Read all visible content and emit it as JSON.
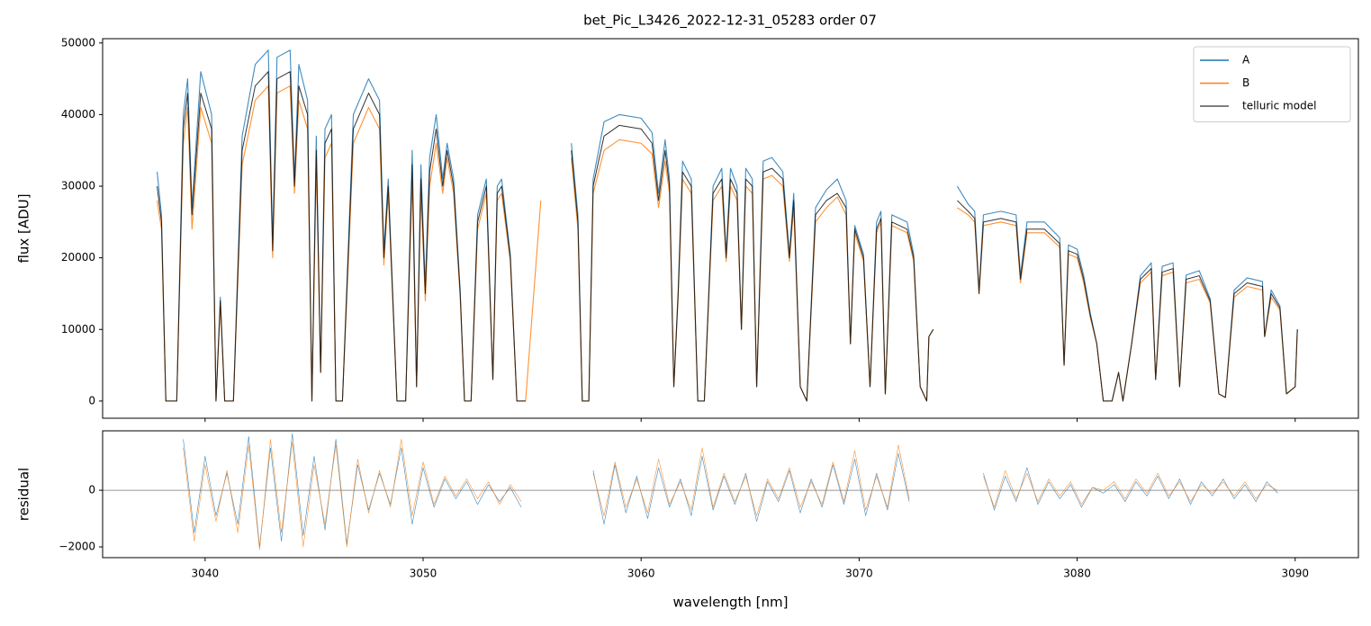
{
  "chart_data": [
    {
      "type": "line",
      "title": "bet_Pic_L3426_2022-12-31_05283  order 07",
      "ylabel": "flux [ADU]",
      "xlim": [
        3035.3,
        3092.9
      ],
      "ylim": [
        -2400,
        50600
      ],
      "yticks": [
        0,
        10000,
        20000,
        30000,
        40000,
        50000
      ],
      "legend": "upper right",
      "x": [
        3037.8,
        3038.0,
        3038.2,
        3038.7,
        3039.0,
        3039.2,
        3039.4,
        3039.8,
        3040.3,
        3040.5,
        3040.7,
        3040.9,
        3041.3,
        3041.7,
        3042.3,
        3042.9,
        3043.1,
        3043.3,
        3043.9,
        3044.1,
        3044.3,
        3044.7,
        3044.9,
        3045.1,
        3045.3,
        3045.5,
        3045.8,
        3046.0,
        3046.3,
        3046.8,
        3047.5,
        3048.0,
        3048.2,
        3048.4,
        3048.8,
        3049.2,
        3049.5,
        3049.7,
        3049.9,
        3050.1,
        3050.3,
        3050.6,
        3050.9,
        3051.1,
        3051.4,
        3051.7,
        3051.9,
        3052.2,
        3052.5,
        3052.9,
        3053.2,
        3053.4,
        3053.6,
        3054.0,
        3054.3,
        3054.7,
        3055.4,
        3056.0,
        3056.8,
        3057.1,
        3057.3,
        3057.6,
        3057.8,
        3058.3,
        3059.0,
        3060.0,
        3060.5,
        3060.8,
        3061.1,
        3061.3,
        3061.5,
        3061.7,
        3061.9,
        3062.3,
        3062.6,
        3062.9,
        3063.3,
        3063.7,
        3063.9,
        3064.1,
        3064.4,
        3064.6,
        3064.8,
        3065.1,
        3065.3,
        3065.6,
        3066.0,
        3066.5,
        3066.8,
        3067.0,
        3067.3,
        3067.6,
        3068.0,
        3068.5,
        3069.0,
        3069.4,
        3069.6,
        3069.8,
        3070.2,
        3070.5,
        3070.8,
        3071.0,
        3071.2,
        3071.5,
        3072.2,
        3072.5,
        3072.8,
        3073.1,
        3073.2,
        3073.4,
        3074.0,
        3074.5,
        3075.0,
        3075.3,
        3075.5,
        3075.7,
        3076.5,
        3077.2,
        3077.4,
        3077.7,
        3078.5,
        3079.2,
        3079.4,
        3079.6,
        3080.0,
        3080.3,
        3080.6,
        3080.9,
        3081.2,
        3081.6,
        3081.9,
        3082.1,
        3082.5,
        3082.9,
        3083.4,
        3083.6,
        3083.9,
        3084.4,
        3084.7,
        3085.0,
        3085.6,
        3086.1,
        3086.5,
        3086.8,
        3087.2,
        3087.8,
        3088.5,
        3088.6,
        3088.9,
        3089.3,
        3089.6,
        3090.0,
        3090.1
      ],
      "series": [
        {
          "name": "A",
          "color": "#1f77b4",
          "values": [
            32000,
            26000,
            0,
            0,
            40000,
            45000,
            27000,
            46000,
            40000,
            0,
            14500,
            0,
            0,
            37000,
            47000,
            49000,
            22000,
            48000,
            49000,
            31000,
            47000,
            42000,
            0,
            37000,
            4000,
            38000,
            40000,
            0,
            0,
            40000,
            45000,
            42000,
            21000,
            31000,
            0,
            0,
            35000,
            2000,
            33000,
            16000,
            34000,
            40000,
            31000,
            36000,
            31000,
            15500,
            0,
            0,
            26000,
            31000,
            3000,
            30000,
            31000,
            20500,
            0,
            0,
            null,
            null,
            36000,
            26000,
            0,
            0,
            31000,
            39000,
            40000,
            39500,
            37500,
            29000,
            36500,
            31000,
            2000,
            15500,
            33500,
            31000,
            0,
            0,
            30000,
            32500,
            20500,
            32500,
            30000,
            10000,
            32500,
            31000,
            2000,
            33500,
            34000,
            32000,
            20500,
            29000,
            2000,
            0,
            27000,
            29500,
            31000,
            28000,
            8000,
            24500,
            20500,
            2000,
            25000,
            26500,
            1000,
            26000,
            25000,
            20500,
            2000,
            0,
            9000,
            10000,
            null,
            30000,
            27500,
            26500,
            15500,
            26000,
            26500,
            26000,
            17500,
            25000,
            25000,
            22800,
            5000,
            21800,
            21200,
            17500,
            12300,
            8000,
            0,
            0,
            4000,
            0,
            8000,
            17500,
            19300,
            3000,
            18800,
            19300,
            2000,
            17600,
            18200,
            14300,
            1000,
            500,
            15500,
            17200,
            16700,
            9000,
            15500,
            13300,
            1000,
            2000,
            10000
          ]
        },
        {
          "name": "B",
          "color": "#ff7f0e",
          "values": [
            28000,
            24000,
            0,
            0,
            36000,
            41000,
            24000,
            41000,
            36000,
            0,
            13500,
            0,
            0,
            33000,
            42000,
            44000,
            20000,
            43000,
            44000,
            29000,
            42000,
            38000,
            0,
            33000,
            4000,
            34000,
            36000,
            0,
            0,
            36000,
            41000,
            38000,
            19000,
            29000,
            0,
            0,
            31000,
            2000,
            29000,
            14000,
            30000,
            36000,
            29000,
            34000,
            29000,
            14500,
            0,
            0,
            24000,
            29000,
            3000,
            28000,
            29000,
            19500,
            0,
            0,
            28000,
            null,
            34000,
            24000,
            0,
            0,
            29000,
            35000,
            36500,
            36000,
            34500,
            27000,
            33500,
            29000,
            2000,
            14500,
            31000,
            29000,
            0,
            0,
            28000,
            30000,
            19500,
            30000,
            28000,
            10000,
            30000,
            29000,
            2000,
            31000,
            31500,
            30000,
            19500,
            27000,
            2000,
            0,
            25000,
            27000,
            28500,
            26000,
            8000,
            23500,
            19500,
            2000,
            23500,
            25000,
            1000,
            24500,
            23500,
            19500,
            2000,
            0,
            9000,
            10000,
            null,
            27000,
            26000,
            25000,
            15000,
            24500,
            25000,
            24500,
            16500,
            23500,
            23500,
            21500,
            5000,
            20500,
            20000,
            16500,
            11700,
            8000,
            0,
            0,
            4000,
            0,
            8000,
            16500,
            18000,
            3000,
            17500,
            18000,
            2000,
            16500,
            17000,
            13700,
            1000,
            500,
            14500,
            16000,
            15500,
            9000,
            14500,
            12700,
            1000,
            2000,
            10000
          ]
        },
        {
          "name": "telluric model",
          "color": "#555555",
          "values": [
            30000,
            25000,
            0,
            0,
            38000,
            43000,
            26000,
            43000,
            38000,
            0,
            14000,
            0,
            0,
            35000,
            44000,
            46000,
            21000,
            45000,
            46000,
            30000,
            44000,
            40000,
            0,
            35000,
            4000,
            36000,
            38000,
            0,
            0,
            38000,
            43000,
            40000,
            20000,
            30000,
            0,
            0,
            33000,
            2000,
            31000,
            15000,
            32000,
            38000,
            30000,
            35000,
            30000,
            15000,
            0,
            0,
            25000,
            30000,
            3000,
            29000,
            30000,
            20000,
            0,
            0,
            null,
            null,
            35000,
            25000,
            0,
            0,
            30000,
            37000,
            38500,
            38000,
            36000,
            28000,
            35000,
            30000,
            2000,
            15000,
            32000,
            30000,
            0,
            0,
            29000,
            31000,
            20000,
            31000,
            29000,
            10000,
            31000,
            30000,
            2000,
            32000,
            32500,
            31000,
            20000,
            28000,
            2000,
            0,
            26000,
            28000,
            29000,
            27000,
            8000,
            24000,
            20000,
            2000,
            24000,
            25500,
            1000,
            25000,
            24000,
            20000,
            2000,
            0,
            9000,
            10000,
            null,
            28000,
            26500,
            25500,
            15000,
            25000,
            25500,
            25000,
            17000,
            24000,
            24000,
            22000,
            5000,
            21000,
            20500,
            17000,
            12000,
            8000,
            0,
            0,
            4000,
            0,
            8000,
            17000,
            18500,
            3000,
            18000,
            18500,
            2000,
            17000,
            17500,
            14000,
            1000,
            500,
            15000,
            16500,
            16000,
            9000,
            15000,
            13000,
            1000,
            2000,
            10000
          ]
        }
      ]
    },
    {
      "type": "line",
      "ylabel": "residual",
      "xlabel": "wavelength [nm]",
      "xlim": [
        3035.3,
        3092.9
      ],
      "xticks": [
        3040,
        3050,
        3060,
        3070,
        3080,
        3090
      ],
      "ylim": [
        -2380,
        2100
      ],
      "yticks": [
        {
          "value": -2000,
          "label": "−2000"
        },
        0
      ],
      "hline": 0,
      "x": [
        3039.0,
        3039.5,
        3040.0,
        3040.5,
        3041.0,
        3041.5,
        3042.0,
        3042.5,
        3043.0,
        3043.5,
        3044.0,
        3044.5,
        3045.0,
        3045.5,
        3046.0,
        3046.5,
        3047.0,
        3047.5,
        3048.0,
        3048.5,
        3049.0,
        3049.5,
        3050.0,
        3050.5,
        3051.0,
        3051.5,
        3052.0,
        3052.5,
        3053.0,
        3053.5,
        3054.0,
        3054.5,
        3056.0,
        3057.8,
        3058.3,
        3058.8,
        3059.3,
        3059.8,
        3060.3,
        3060.8,
        3061.3,
        3061.8,
        3062.3,
        3062.8,
        3063.3,
        3063.8,
        3064.3,
        3064.8,
        3065.3,
        3065.8,
        3066.3,
        3066.8,
        3067.3,
        3067.8,
        3068.3,
        3068.8,
        3069.3,
        3069.8,
        3070.3,
        3070.8,
        3071.3,
        3071.8,
        3072.3,
        3074.0,
        3075.7,
        3076.2,
        3076.7,
        3077.2,
        3077.7,
        3078.2,
        3078.7,
        3079.2,
        3079.7,
        3080.2,
        3080.7,
        3081.2,
        3081.7,
        3082.2,
        3082.7,
        3083.2,
        3083.7,
        3084.2,
        3084.7,
        3085.2,
        3085.7,
        3086.2,
        3086.7,
        3087.2,
        3087.7,
        3088.2,
        3088.7,
        3089.2
      ],
      "series": [
        {
          "name": "A",
          "color": "#1f77b4",
          "values": [
            1800,
            -1500,
            1200,
            -900,
            600,
            -1200,
            1900,
            -2000,
            1500,
            -1800,
            2000,
            -1600,
            1200,
            -1400,
            1800,
            -1900,
            900,
            -700,
            600,
            -500,
            1500,
            -1200,
            800,
            -600,
            400,
            -300,
            300,
            -500,
            200,
            -400,
            100,
            -600,
            null,
            700,
            -1200,
            900,
            -800,
            500,
            -1000,
            800,
            -600,
            400,
            -900,
            1200,
            -700,
            500,
            -500,
            600,
            -1100,
            300,
            -400,
            700,
            -800,
            400,
            -600,
            900,
            -500,
            1100,
            -900,
            600,
            -700,
            1300,
            -400,
            null,
            600,
            -700,
            500,
            -400,
            800,
            -500,
            300,
            -300,
            200,
            -600,
            100,
            -100,
            200,
            -400,
            300,
            -200,
            500,
            -300,
            400,
            -500,
            300,
            -200,
            400,
            -300,
            200,
            -400,
            300,
            -100
          ]
        },
        {
          "name": "B",
          "color": "#ff7f0e",
          "values": [
            1500,
            -1800,
            900,
            -1100,
            700,
            -1500,
            1600,
            -2100,
            1800,
            -1500,
            1700,
            -2000,
            900,
            -1200,
            1600,
            -2000,
            1100,
            -800,
            700,
            -600,
            1800,
            -900,
            1000,
            -500,
            500,
            -200,
            400,
            -300,
            300,
            -500,
            200,
            -400,
            null,
            600,
            -900,
            1000,
            -600,
            400,
            -800,
            1100,
            -500,
            300,
            -700,
            1500,
            -600,
            600,
            -400,
            500,
            -900,
            400,
            -300,
            800,
            -600,
            300,
            -500,
            1000,
            -400,
            1400,
            -700,
            500,
            -600,
            1600,
            -300,
            null,
            500,
            -600,
            700,
            -300,
            600,
            -400,
            400,
            -200,
            300,
            -500,
            100,
            0,
            300,
            -300,
            400,
            -100,
            600,
            -200,
            300,
            -400,
            200,
            -100,
            300,
            -200,
            300,
            -300,
            200,
            0
          ]
        }
      ]
    }
  ]
}
